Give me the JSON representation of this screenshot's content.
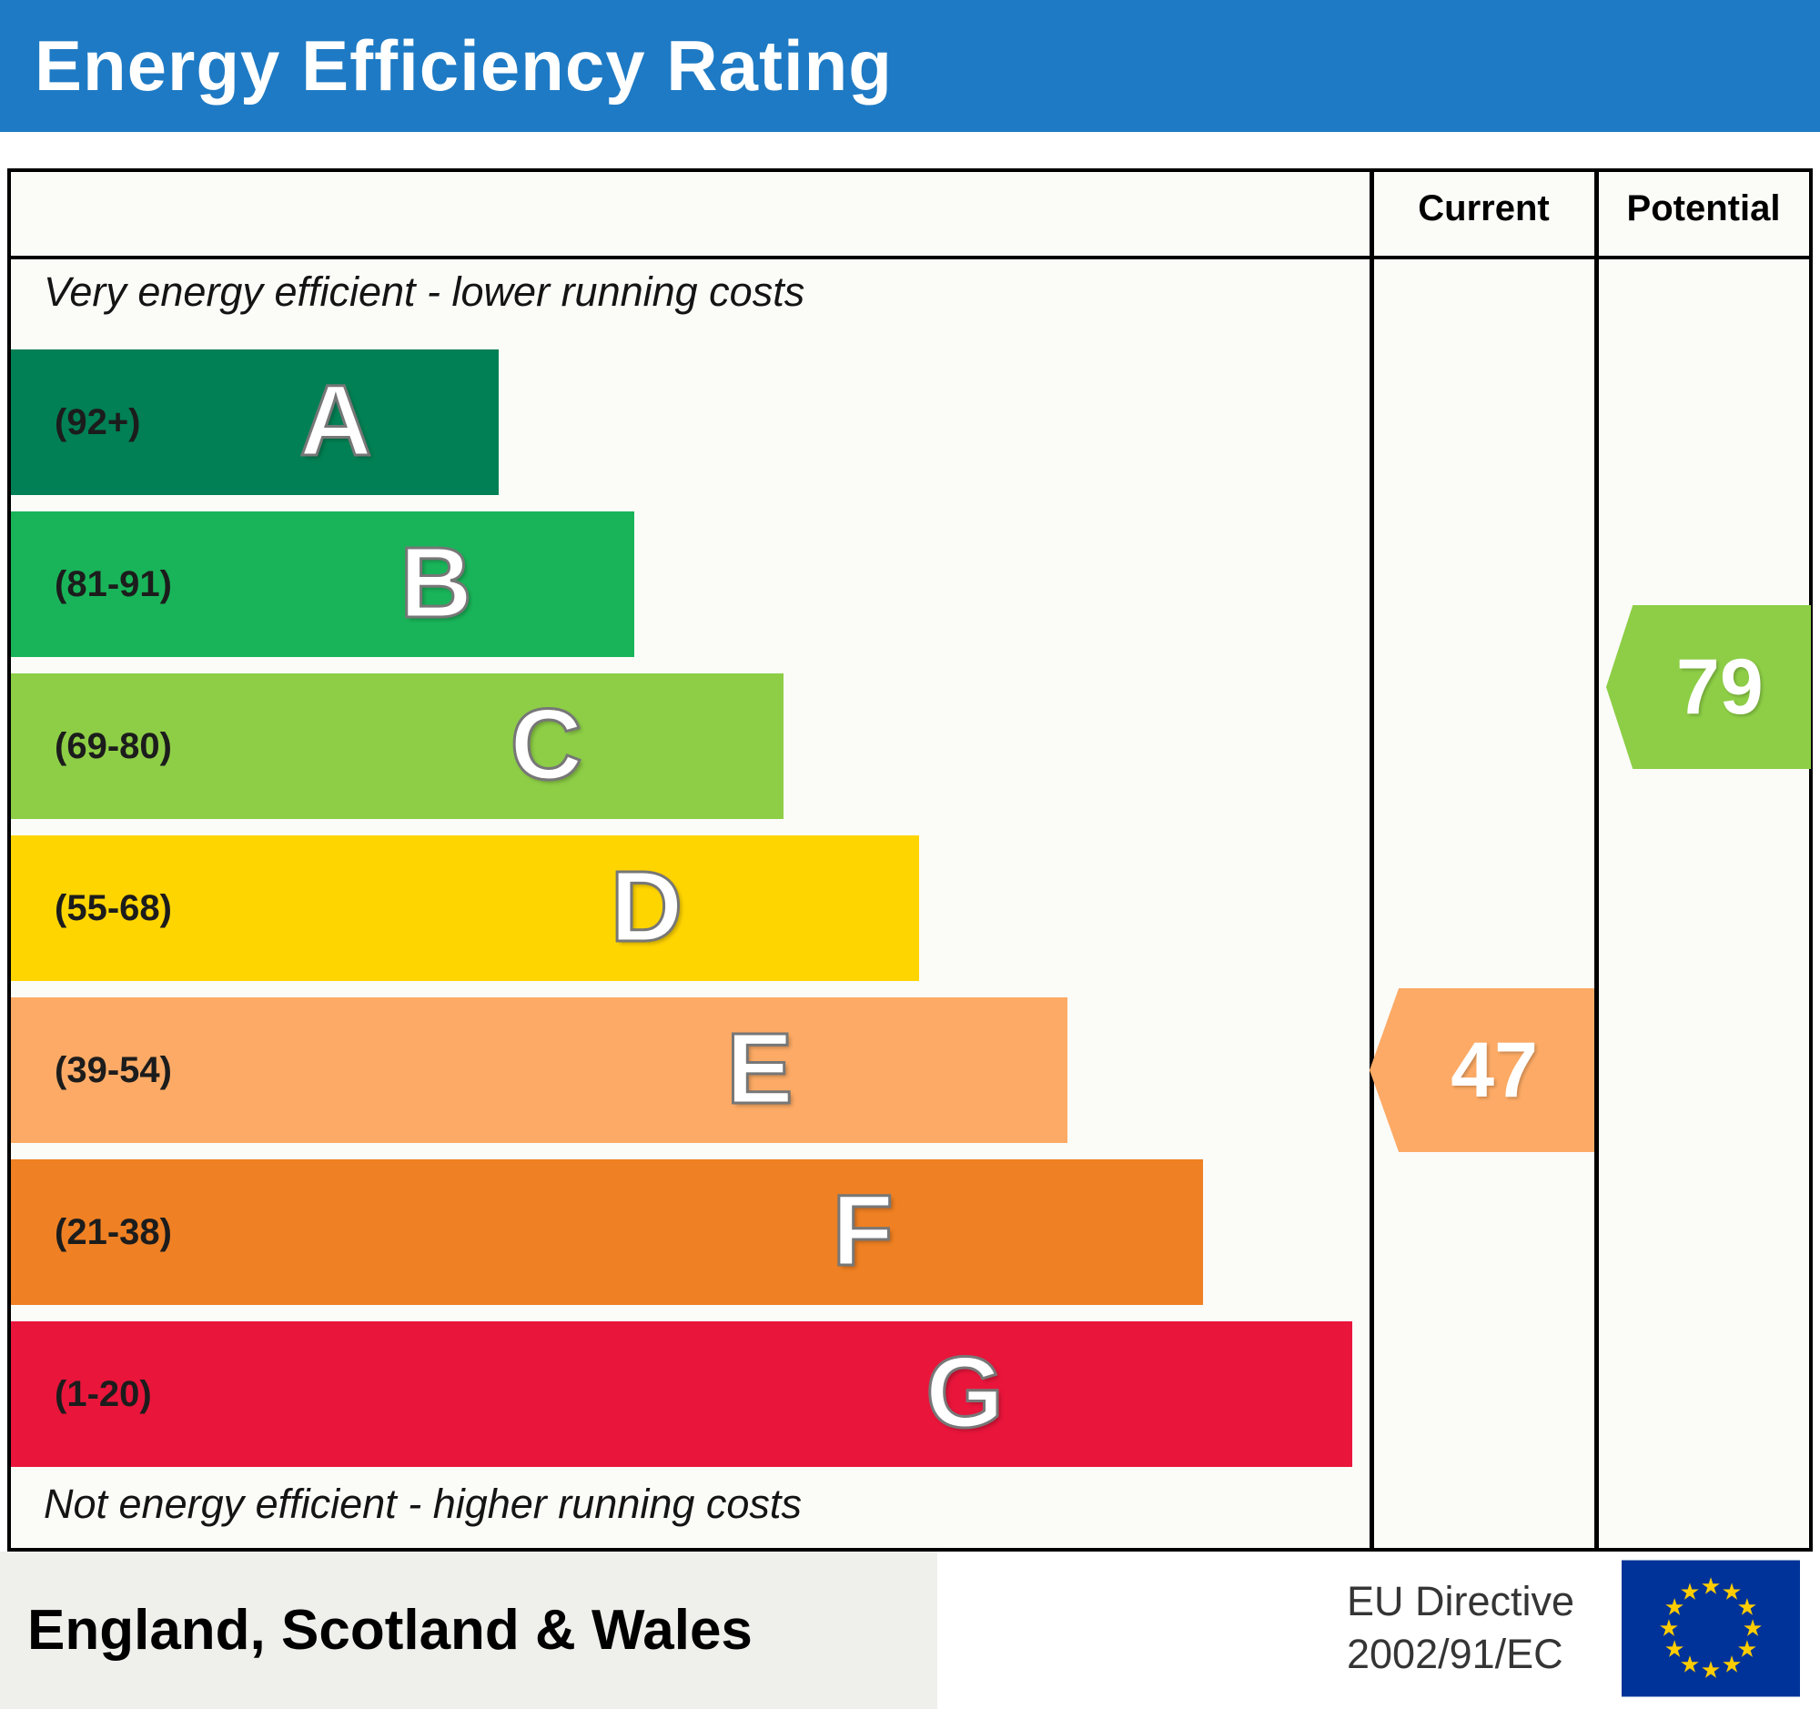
{
  "title": "Energy Efficiency Rating",
  "colors": {
    "header_blue": "#1e7ac4"
  },
  "columns": {
    "current": "Current",
    "potential": "Potential"
  },
  "top_note": "Very energy efficient - lower running costs",
  "bottom_note": "Not energy efficient - higher running costs",
  "bands": [
    {
      "letter": "A",
      "range": "(92+)",
      "color": "#008054",
      "width_pct": 36
    },
    {
      "letter": "B",
      "range": "(81-91)",
      "color": "#19b459",
      "width_pct": 46
    },
    {
      "letter": "C",
      "range": "(69-80)",
      "color": "#8dce46",
      "width_pct": 57
    },
    {
      "letter": "D",
      "range": "(55-68)",
      "color": "#ffd500",
      "width_pct": 67
    },
    {
      "letter": "E",
      "range": "(39-54)",
      "color": "#fcaa65",
      "width_pct": 78
    },
    {
      "letter": "F",
      "range": "(21-38)",
      "color": "#ef8023",
      "width_pct": 88
    },
    {
      "letter": "G",
      "range": "(1-20)",
      "color": "#e9153b",
      "width_pct": 99
    }
  ],
  "current": {
    "value": 47,
    "band": "E",
    "color": "#fcaa65"
  },
  "potential": {
    "value": 79,
    "band": "C",
    "color": "#8dce46"
  },
  "footer": {
    "region": "England, Scotland & Wales",
    "directive_line1": "EU Directive",
    "directive_line2": "2002/91/EC"
  },
  "eu_flag": {
    "background": "#003399",
    "star_color": "#ffcc00"
  },
  "chart_data": {
    "type": "bar",
    "orientation": "horizontal",
    "title": "Energy Efficiency Rating",
    "categories": [
      "A",
      "B",
      "C",
      "D",
      "E",
      "F",
      "G"
    ],
    "band_ranges": [
      "92+",
      "81-91",
      "69-80",
      "55-68",
      "39-54",
      "21-38",
      "1-20"
    ],
    "band_colors": [
      "#008054",
      "#19b459",
      "#8dce46",
      "#ffd500",
      "#fcaa65",
      "#ef8023",
      "#e9153b"
    ],
    "bar_width_pct": [
      36,
      46,
      57,
      67,
      78,
      88,
      99
    ],
    "scale": [
      1,
      100
    ],
    "markers": [
      {
        "name": "Current",
        "value": 47,
        "band": "E"
      },
      {
        "name": "Potential",
        "value": 79,
        "band": "C"
      }
    ],
    "annotations": [
      "Very energy efficient - lower running costs",
      "Not energy efficient - higher running costs"
    ],
    "footnote": "England, Scotland & Wales — EU Directive 2002/91/EC"
  }
}
